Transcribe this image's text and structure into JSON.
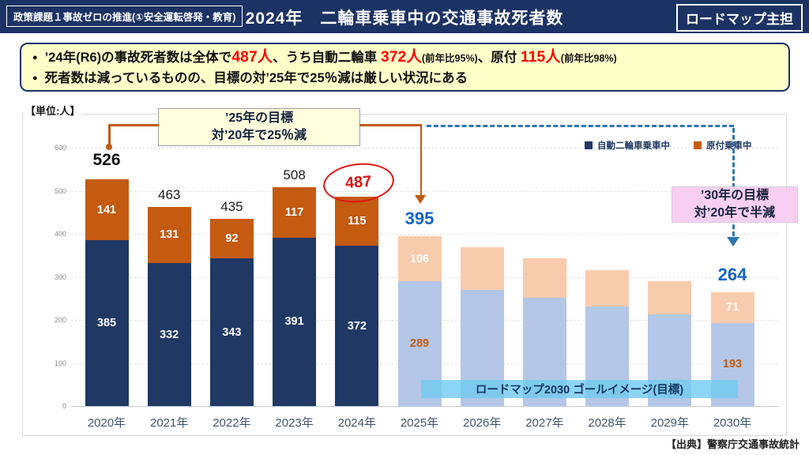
{
  "header": {
    "left_tag": "政策課題１事故ゼロの推進(①安全運転啓発・教育)",
    "title": "2024年　二輪車乗車中の交通事故死者数",
    "right_tag": "ロードマップ主担"
  },
  "summary": {
    "bullet1_segments": [
      {
        "text": "’24年(R6)の事故死者数は全体で",
        "style": "base"
      },
      {
        "text": "487人",
        "style": "big"
      },
      {
        "text": "、うち自動二輪車 ",
        "style": "base"
      },
      {
        "text": "372人",
        "style": "big"
      },
      {
        "text": "(前年比95%)",
        "style": "small"
      },
      {
        "text": "、原付 ",
        "style": "base"
      },
      {
        "text": "115人",
        "style": "big"
      },
      {
        "text": "(前年比98%)",
        "style": "small"
      }
    ],
    "bullet2": "死者数は減っているものの、目標の対’25年で25％減は厳しい状況にある"
  },
  "chart": {
    "unit_label": "【単位:人】",
    "legend": [
      {
        "label": "自動二輪車乗車中",
        "color": "#1F3864"
      },
      {
        "label": "原付乗車中",
        "color": "#C55A11"
      }
    ],
    "annotations": {
      "goal_2025": {
        "line1": "’25年の目標",
        "line2": "対’20年で25％減",
        "bg": "#FFFFDE"
      },
      "goal_2030": {
        "line1": "’30年の目標",
        "line2": "対’20年で半減",
        "bg": "#F8CFF3"
      },
      "roadmap_banner": "ロードマップ2030 ゴールイメージ(目標)",
      "circled_value": "487"
    },
    "source": "【出典】警察庁交通事故統計"
  },
  "chart_data": {
    "type": "bar",
    "stacked": true,
    "title": "2024年 二輪車乗車中の交通事故死者数",
    "ylabel": "人",
    "ylim": [
      0,
      600
    ],
    "yticks": [
      0,
      100,
      200,
      300,
      400,
      500,
      600
    ],
    "grid": true,
    "legend_position": "top-right",
    "categories": [
      "2020年",
      "2021年",
      "2022年",
      "2023年",
      "2024年",
      "2025年",
      "2026年",
      "2027年",
      "2028年",
      "2029年",
      "2030年"
    ],
    "series": [
      {
        "name": "自動二輪車乗車中",
        "values": [
          385,
          332,
          343,
          391,
          372,
          289,
          270,
          251,
          232,
          212,
          193
        ]
      },
      {
        "name": "原付乗車中",
        "values": [
          141,
          131,
          92,
          117,
          115,
          106,
          99,
          92,
          84,
          78,
          71
        ]
      }
    ],
    "totals": [
      526,
      463,
      435,
      508,
      487,
      395,
      369,
      343,
      316,
      290,
      264
    ],
    "labeled_year_indices": [
      0,
      1,
      2,
      3,
      4,
      5,
      10
    ],
    "estimated_year_indices": [
      6,
      7,
      8,
      9
    ],
    "target_start_index": 5,
    "total_label_styles": [
      "big-black",
      "black",
      "black",
      "black",
      "red-circled",
      "blue",
      "none",
      "none",
      "none",
      "none",
      "blue"
    ],
    "colors": {
      "actual_moto": "#1F3864",
      "actual_moped": "#C55A11",
      "target_moto": "#B4C7E7",
      "target_moped": "#F8CBAD",
      "blue_label": "#1665C0",
      "red_label": "#E01414",
      "target_moto_label": "#C55A11",
      "segment_label_white": "#FFFFFF"
    }
  }
}
